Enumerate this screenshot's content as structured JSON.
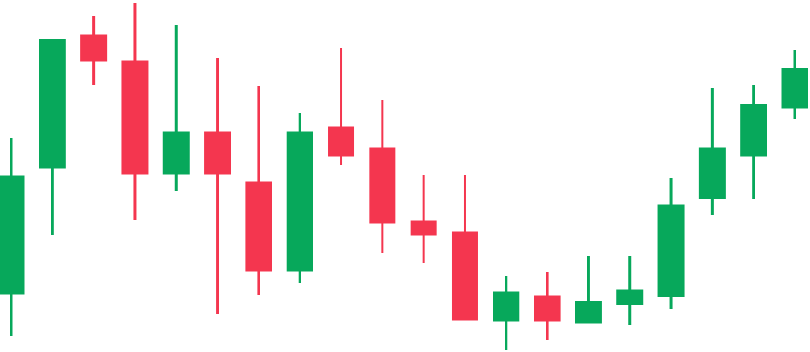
{
  "chart_data": {
    "type": "candlestick",
    "open": [
      72,
      229,
      395,
      362,
      221,
      274,
      212,
      101,
      280,
      254,
      163,
      149,
      38,
      70,
      36,
      59,
      69,
      191,
      244,
      303
    ],
    "high": [
      266,
      389,
      418,
      434,
      407,
      366,
      331,
      297,
      378,
      313,
      220,
      220,
      95,
      100,
      119,
      120,
      216,
      328,
      332,
      376
    ],
    "low": [
      20,
      146,
      332,
      164,
      200,
      47,
      71,
      86,
      233,
      123,
      111,
      40,
      3,
      15,
      36,
      33,
      54,
      170,
      191,
      290
    ],
    "close": [
      219,
      389,
      362,
      221,
      274,
      221,
      101,
      274,
      244,
      160,
      145,
      40,
      75,
      38,
      63,
      77,
      183,
      254,
      308,
      353
    ],
    "up_color": "#07a85b",
    "down_color": "#f4364f",
    "ylim": [
      0,
      438
    ]
  }
}
